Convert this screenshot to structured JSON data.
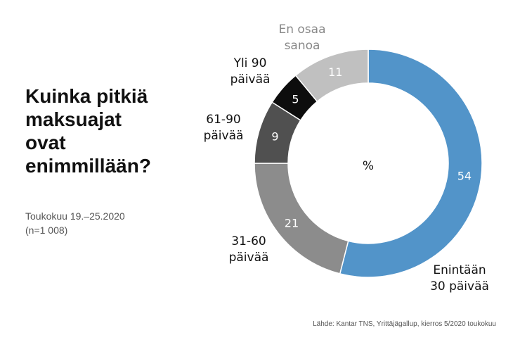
{
  "title_lines": [
    "Kuinka pitkiä",
    "maksuajat",
    "ovat",
    "enimmillään?"
  ],
  "subtitle_lines": [
    "Toukokuu 19.–25.2020",
    "(n=1 008)"
  ],
  "source": "Lähde: Kantar TNS, Yrittäjägallup, kierros 5/2020 toukokuu",
  "chart_data": {
    "type": "pie",
    "variant": "donut",
    "title": "Kuinka pitkiä maksuajat ovat enimmillään?",
    "center_label": "%",
    "start": "top",
    "direction": "clockwise",
    "slices": [
      {
        "label_lines": [
          "Enintään",
          "30 päivää"
        ],
        "value": 54,
        "color": "#5294c9"
      },
      {
        "label_lines": [
          "31-60",
          "päivää"
        ],
        "value": 21,
        "color": "#8c8c8c"
      },
      {
        "label_lines": [
          "61-90",
          "päivää"
        ],
        "value": 9,
        "color": "#505050"
      },
      {
        "label_lines": [
          "Yli 90",
          "päivää"
        ],
        "value": 5,
        "color": "#0d0d0d"
      },
      {
        "label_lines": [
          "En osaa",
          "sanoa"
        ],
        "value": 11,
        "color": "#c0c0c0"
      }
    ]
  }
}
